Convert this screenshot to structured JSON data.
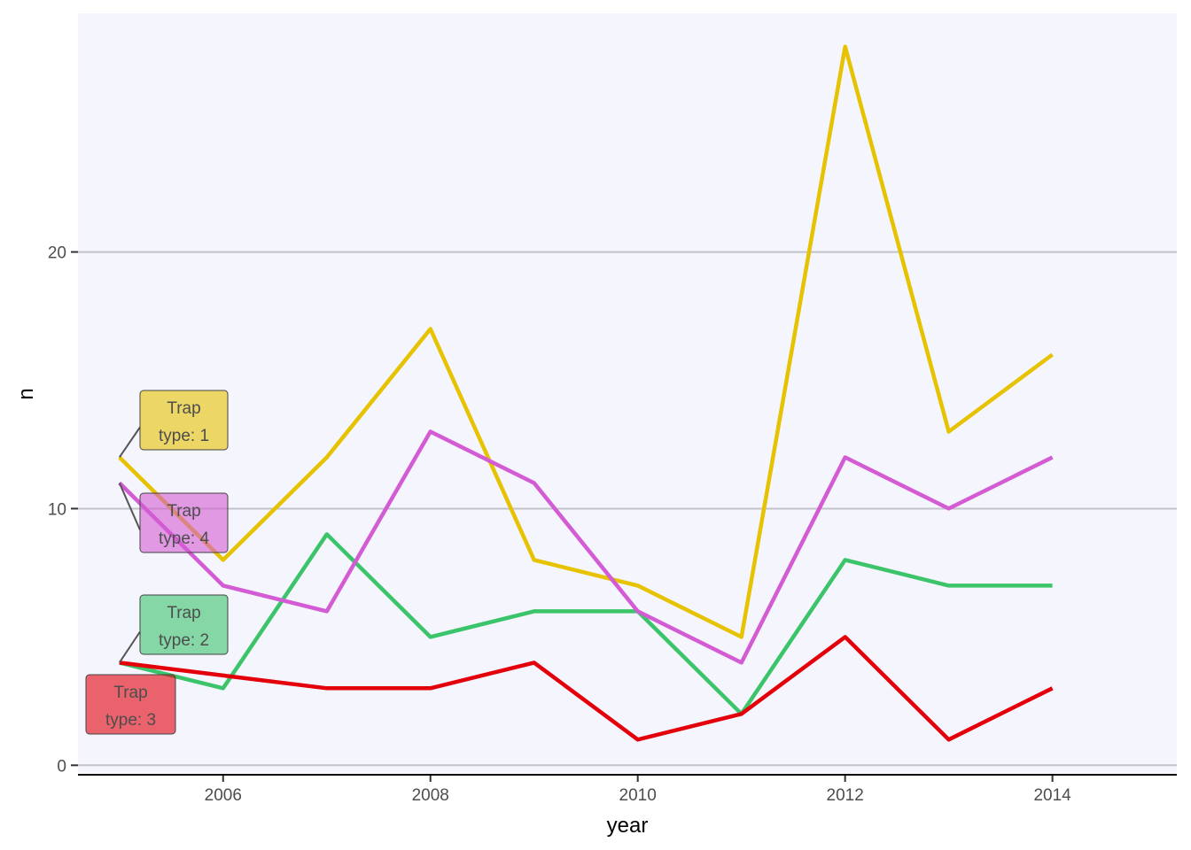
{
  "chart_data": {
    "type": "line",
    "xlabel": "year",
    "ylabel": "n",
    "x": [
      2005,
      2006,
      2007,
      2008,
      2009,
      2010,
      2011,
      2012,
      2013,
      2014
    ],
    "xlim": [
      2004.6,
      2015.2
    ],
    "ylim": [
      -0.3,
      29.3
    ],
    "x_ticks": [
      2006,
      2008,
      2010,
      2012,
      2014
    ],
    "y_ticks": [
      0,
      10,
      20
    ],
    "grid": "horizontal-major",
    "legend": "none (direct labels at series start)",
    "series": [
      {
        "name": "Trap\ntype: 1",
        "label_lines": [
          "Trap",
          "type:  1"
        ],
        "color": "#E6C200",
        "values": [
          12,
          8,
          12,
          17,
          8,
          7,
          5,
          28,
          13,
          16
        ]
      },
      {
        "name": "Trap\ntype: 2",
        "label_lines": [
          "Trap",
          "type:  2"
        ],
        "color": "#3BC46A",
        "values": [
          4,
          3,
          9,
          5,
          6,
          6,
          2,
          8,
          7,
          7
        ]
      },
      {
        "name": "Trap\ntype: 3",
        "label_lines": [
          "Trap",
          "type:  3"
        ],
        "color": "#E3000B",
        "values": [
          4,
          3.5,
          3,
          3,
          4,
          1,
          2,
          5,
          1,
          3
        ]
      },
      {
        "name": "Trap\ntype: 4",
        "label_lines": [
          "Trap",
          "type:  4"
        ],
        "color": "#D35BD3",
        "values": [
          11,
          7,
          6,
          13,
          11,
          6,
          4,
          12,
          10,
          12
        ]
      }
    ]
  }
}
